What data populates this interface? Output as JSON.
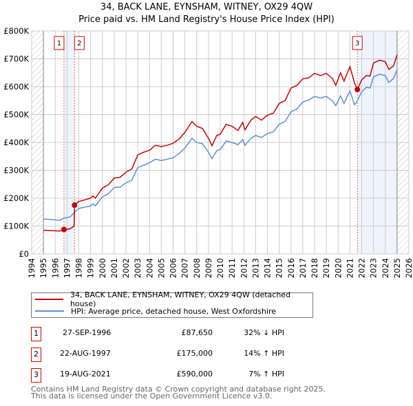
{
  "chart_data": {
    "type": "line",
    "title": "34, BACK LANE, EYNSHAM, WITNEY, OX29 4QW",
    "subtitle": "Price paid vs. HM Land Registry's House Price Index (HPI)",
    "xlim": [
      1994,
      2026
    ],
    "ylim": [
      0,
      800000
    ],
    "x_ticks": [
      "1994",
      "1995",
      "1996",
      "1997",
      "1998",
      "1999",
      "2000",
      "2001",
      "2002",
      "2003",
      "2004",
      "2005",
      "2006",
      "2007",
      "2008",
      "2009",
      "2010",
      "2011",
      "2012",
      "2013",
      "2014",
      "2015",
      "2016",
      "2017",
      "2018",
      "2019",
      "2020",
      "2021",
      "2022",
      "2023",
      "2024",
      "2025",
      "2026"
    ],
    "y_ticks": [
      "£0",
      "£100K",
      "£200K",
      "£300K",
      "£400K",
      "£500K",
      "£600K",
      "£700K",
      "£800K"
    ],
    "grid": true,
    "data_range": [
      1995,
      2025
    ],
    "series": [
      {
        "name": "34, BACK LANE, EYNSHAM, WITNEY, OX29 4QW (detached house)",
        "color": "#cc0000",
        "x": [
          1995.0,
          1995.5,
          1996.0,
          1996.4,
          1996.74,
          1997.0,
          1997.3,
          1997.6,
          1997.64,
          1998.0,
          1998.5,
          1999.0,
          1999.2,
          1999.4,
          2000.0,
          2000.5,
          2001.0,
          2001.5,
          2002.0,
          2002.5,
          2003.0,
          2003.5,
          2004.0,
          2004.5,
          2005.0,
          2005.5,
          2006.0,
          2006.5,
          2007.0,
          2007.6,
          2008.0,
          2008.5,
          2009.0,
          2009.3,
          2009.7,
          2010.0,
          2010.5,
          2011.0,
          2011.5,
          2011.9,
          2012.1,
          2012.6,
          2013.0,
          2013.5,
          2014.0,
          2014.5,
          2015.0,
          2015.5,
          2016.0,
          2016.5,
          2017.0,
          2017.5,
          2018.0,
          2018.5,
          2019.0,
          2019.5,
          2019.8,
          2020.2,
          2020.5,
          2021.0,
          2021.4,
          2021.64,
          2022.0,
          2022.4,
          2022.7,
          2023.0,
          2023.5,
          2024.0,
          2024.3,
          2024.7,
          2025.0
        ],
        "y": [
          85,
          84,
          83,
          82,
          87.65,
          88,
          91,
          100,
          175,
          188,
          194,
          200,
          208,
          200,
          236,
          248,
          272,
          275,
          293,
          305,
          355,
          365,
          372,
          390,
          385,
          390,
          397,
          412,
          436,
          475,
          458,
          450,
          415,
          388,
          425,
          430,
          465,
          458,
          443,
          472,
          445,
          480,
          493,
          480,
          498,
          505,
          540,
          550,
          595,
          605,
          628,
          632,
          648,
          640,
          648,
          630,
          605,
          650,
          620,
          672,
          612,
          590,
          625,
          640,
          638,
          685,
          695,
          690,
          662,
          675,
          715
        ]
      },
      {
        "name": "HPI: Average price, detached house, West Oxfordshire",
        "color": "#5b8ed6",
        "x": [
          1995.0,
          1995.5,
          1996.0,
          1996.4,
          1996.75,
          1997.0,
          1997.3,
          1997.64,
          1998.0,
          1998.5,
          1999.0,
          1999.2,
          1999.4,
          2000.0,
          2000.5,
          2001.0,
          2001.5,
          2002.0,
          2002.5,
          2003.0,
          2003.5,
          2004.0,
          2004.5,
          2005.0,
          2005.5,
          2006.0,
          2006.5,
          2007.0,
          2007.6,
          2008.0,
          2008.5,
          2009.0,
          2009.3,
          2009.7,
          2010.0,
          2010.5,
          2011.0,
          2011.5,
          2011.9,
          2012.1,
          2012.6,
          2013.0,
          2013.5,
          2014.0,
          2014.5,
          2015.0,
          2015.5,
          2016.0,
          2016.5,
          2017.0,
          2017.5,
          2018.0,
          2018.5,
          2019.0,
          2019.5,
          2019.8,
          2020.2,
          2020.5,
          2021.0,
          2021.4,
          2021.64,
          2022.0,
          2022.4,
          2022.7,
          2023.0,
          2023.5,
          2024.0,
          2024.3,
          2024.7,
          2025.0
        ],
        "y": [
          125,
          124,
          122,
          120,
          129,
          130,
          134,
          150,
          163,
          168,
          172,
          180,
          172,
          205,
          215,
          238,
          240,
          255,
          265,
          310,
          318,
          327,
          340,
          335,
          340,
          345,
          360,
          380,
          415,
          400,
          395,
          365,
          342,
          370,
          375,
          405,
          400,
          392,
          410,
          390,
          415,
          425,
          418,
          432,
          438,
          465,
          475,
          510,
          520,
          545,
          552,
          565,
          560,
          565,
          550,
          532,
          567,
          540,
          585,
          535,
          551,
          582,
          598,
          595,
          635,
          645,
          640,
          615,
          630,
          660
        ]
      }
    ],
    "y_unit": "thousand GBP",
    "sales": [
      {
        "label": "1",
        "x": 1996.74,
        "price": 87650,
        "date": "27-SEP-1996",
        "price_text": "£87,650",
        "hpi_text": "32% ↓ HPI"
      },
      {
        "label": "2",
        "x": 1997.64,
        "price": 175000,
        "date": "22-AUG-1997",
        "price_text": "£175,000",
        "hpi_text": "14% ↑ HPI"
      },
      {
        "label": "3",
        "x": 2021.63,
        "price": 590000,
        "date": "19-AUG-2021",
        "price_text": "£590,000",
        "hpi_text": "7% ↑ HPI"
      }
    ]
  },
  "footer": {
    "line1": "Contains HM Land Registry data © Crown copyright and database right 2025.",
    "line2": "This data is licensed under the Open Government Licence v3.0."
  }
}
